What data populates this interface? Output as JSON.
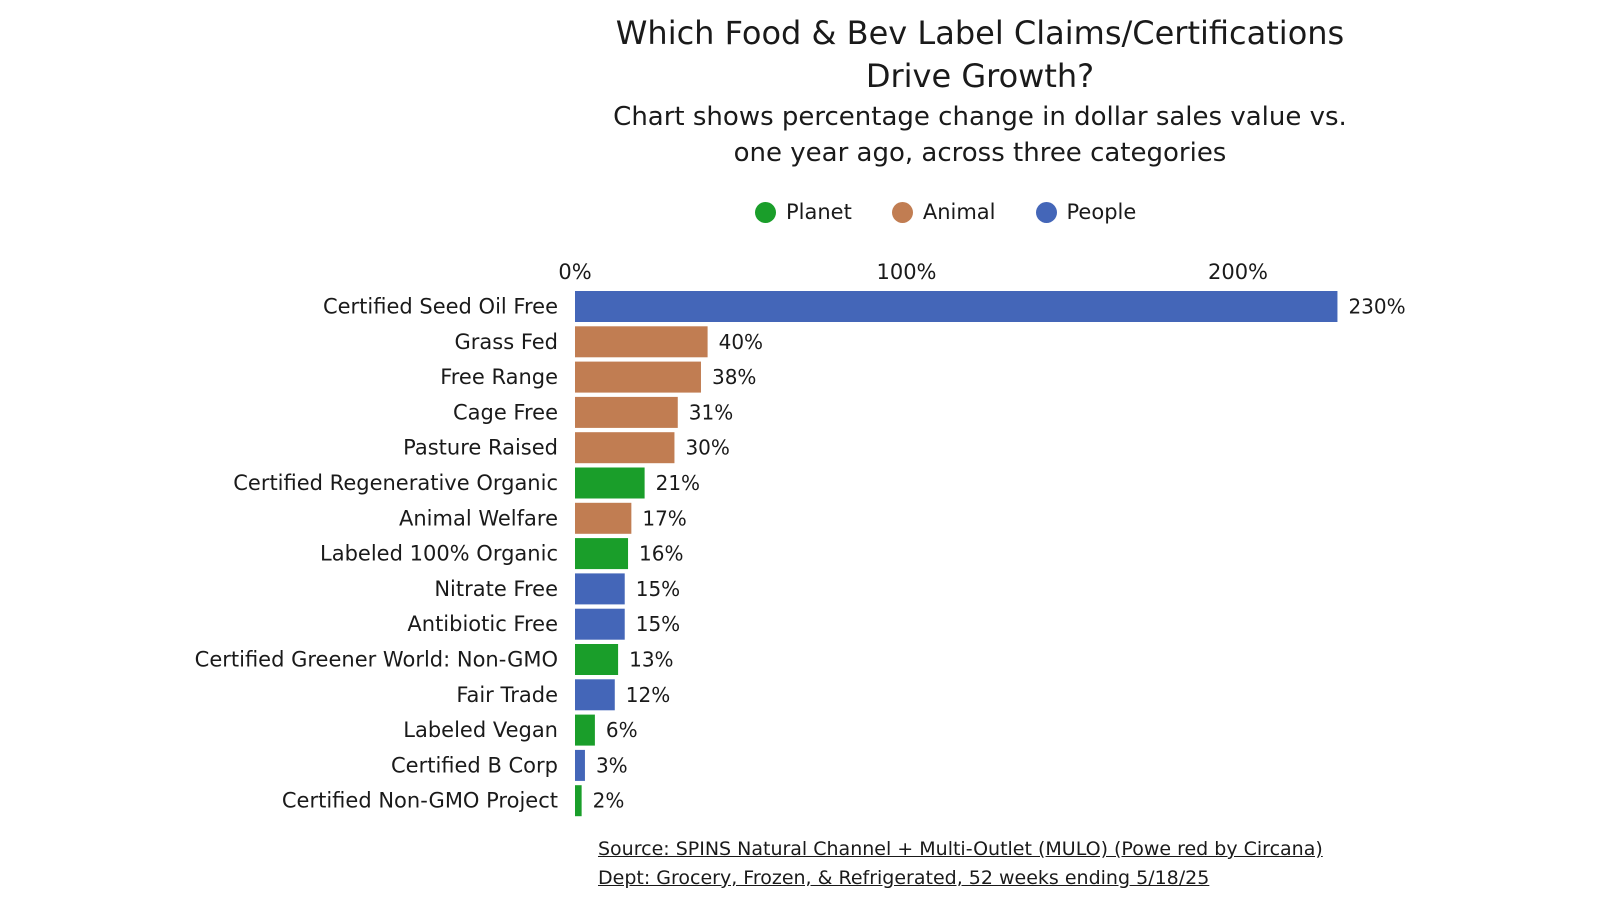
{
  "chart_data": {
    "type": "bar",
    "orientation": "horizontal",
    "title_line1": "Which Food & Bev Label Claims/Certifications",
    "title_line2": "Drive Growth?",
    "subtitle_line1": "Chart shows percentage change in dollar sales value vs.",
    "subtitle_line2": "one year ago, across three categories",
    "legend": [
      {
        "name": "Planet",
        "color": "#1a9e2a"
      },
      {
        "name": "Animal",
        "color": "#c17d52"
      },
      {
        "name": "People",
        "color": "#4466b8"
      }
    ],
    "x_ticks": [
      "0%",
      "100%",
      "200%"
    ],
    "x_tick_values": [
      0,
      100,
      200
    ],
    "xlim": [
      0,
      230
    ],
    "categories": [
      "Certified Seed Oil Free",
      "Grass Fed",
      "Free Range",
      "Cage Free",
      "Pasture Raised",
      "Certified Regenerative Organic",
      "Animal Welfare",
      "Labeled 100% Organic",
      "Nitrate Free",
      "Antibiotic Free",
      "Certified Greener World: Non-GMO",
      "Fair Trade",
      "Labeled Vegan",
      "Certified B Corp",
      "Certified Non-GMO Project"
    ],
    "values": [
      230,
      40,
      38,
      31,
      30,
      21,
      17,
      16,
      15,
      15,
      13,
      12,
      6,
      3,
      2
    ],
    "value_labels": [
      "230%",
      "40%",
      "38%",
      "31%",
      "30%",
      "21%",
      "17%",
      "16%",
      "15%",
      "15%",
      "13%",
      "12%",
      "6%",
      "3%",
      "2%"
    ],
    "groups": [
      "People",
      "Animal",
      "Animal",
      "Animal",
      "Animal",
      "Planet",
      "Animal",
      "Planet",
      "People",
      "People",
      "Planet",
      "People",
      "Planet",
      "People",
      "Planet"
    ],
    "grid": false,
    "legend_position": "top"
  },
  "source": {
    "line1": "Source: SPINS Natural Channel + Multi-Outlet (MULO) (Powe red by Circana)",
    "line2": "Dept: Grocery, Frozen, & Refrigerated, 52 weeks ending 5/18/25"
  }
}
